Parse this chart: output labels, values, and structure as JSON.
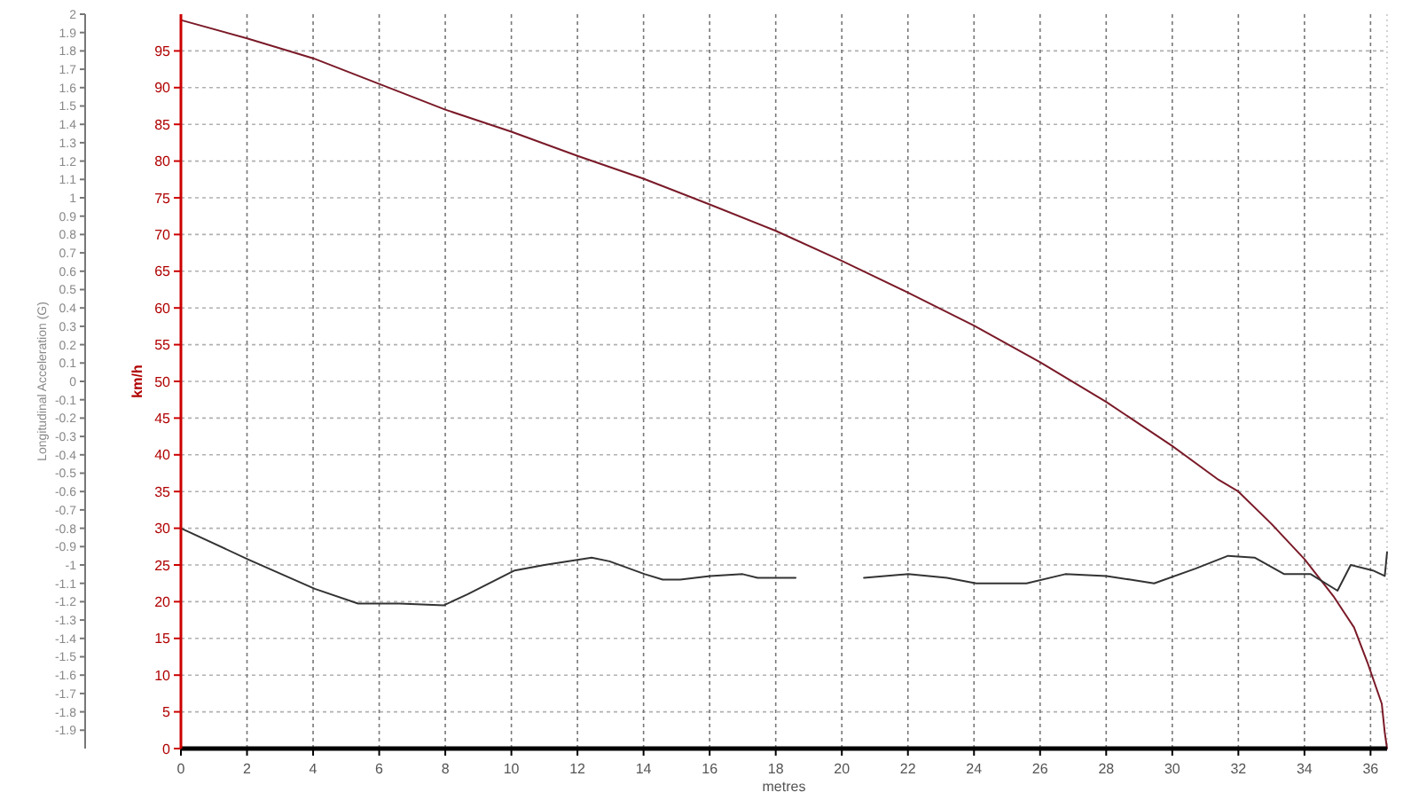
{
  "chart_data": {
    "type": "line",
    "xlabel": "metres",
    "ylabel": "km/h",
    "y2label": "Longitudinal Acceleration (G)",
    "xlim": [
      0,
      36.5
    ],
    "xticks": [
      0,
      2,
      4,
      6,
      8,
      10,
      12,
      14,
      16,
      18,
      20,
      22,
      24,
      26,
      28,
      30,
      32,
      34,
      36
    ],
    "ylim": [
      0,
      100
    ],
    "yticks": [
      0,
      5,
      10,
      15,
      20,
      25,
      30,
      35,
      40,
      45,
      50,
      55,
      60,
      65,
      70,
      75,
      80,
      85,
      90,
      95
    ],
    "y2lim": [
      -2,
      2
    ],
    "y2ticks": [
      2,
      1.9,
      1.8,
      1.7,
      1.6,
      1.5,
      1.4,
      1.3,
      1.2,
      1.1,
      1,
      0.9,
      0.8,
      0.7,
      0.6,
      0.5,
      0.4,
      0.3,
      0.2,
      0.1,
      0,
      -0.1,
      -0.2,
      -0.3,
      -0.4,
      -0.5,
      -0.6,
      -0.7,
      -0.8,
      -0.9,
      -1,
      -1.1,
      -1.2,
      -1.3,
      -1.4,
      -1.5,
      -1.6,
      -1.7,
      -1.8,
      -1.9
    ],
    "grid": true,
    "series": [
      {
        "color": "#7a1a28",
        "x": [
          0,
          2,
          4,
          6,
          8,
          10,
          12,
          14,
          16,
          18,
          20,
          22,
          24,
          26,
          28,
          30,
          31.4,
          32,
          33,
          34,
          34.9,
          35.5,
          35.9,
          36.34,
          36.43,
          36.5
        ],
        "values": [
          99.2,
          96.7,
          94,
          90.5,
          87,
          84,
          80.7,
          77.6,
          74.1,
          70.5,
          66.4,
          62.1,
          57.6,
          52.6,
          47.2,
          41.2,
          36.6,
          35,
          30.6,
          25.8,
          20.6,
          16.5,
          11.8,
          6.1,
          2.2,
          0
        ]
      },
      {
        "color": "#333333",
        "axis": "y2",
        "x": [
          0,
          2.04,
          4.05,
          5.36,
          6.61,
          7.95,
          8.67,
          10.1,
          11,
          12.43,
          12.97,
          14.04,
          14.58,
          15.11,
          16.01,
          17,
          17.45,
          18.34,
          18.6,
          19.6,
          20.67,
          22.01,
          23.18,
          24.07,
          25.59,
          26.76,
          28.01,
          28.73,
          29.45,
          30.7,
          31.69,
          32.49,
          33.39,
          34.19,
          35,
          35.4,
          36.07,
          36.43,
          36.5
        ],
        "values": [
          -0.8,
          -0.97,
          -1.13,
          -1.21,
          -1.21,
          -1.22,
          -1.16,
          -1.03,
          -1,
          -0.96,
          -0.98,
          -1.05,
          -1.08,
          -1.08,
          -1.06,
          -1.05,
          -1.07,
          -1.07,
          -1.07,
          null,
          -1.07,
          -1.05,
          -1.07,
          -1.1,
          -1.1,
          -1.05,
          -1.06,
          -1.08,
          -1.1,
          -1.02,
          -0.95,
          -0.96,
          -1.05,
          -1.05,
          -1.14,
          -1,
          -1.03,
          -1.06,
          -0.93
        ]
      }
    ]
  }
}
